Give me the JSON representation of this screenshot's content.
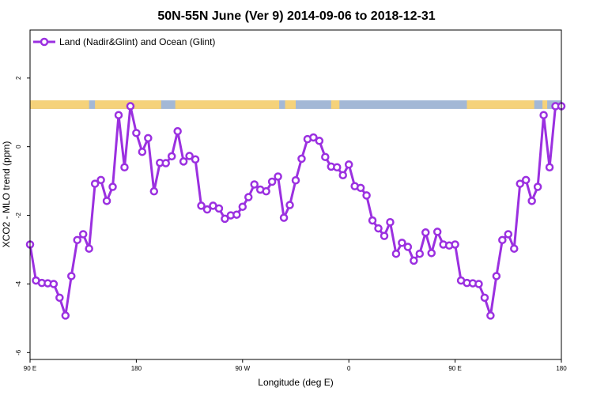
{
  "chart_data": {
    "type": "line",
    "title": "50N-55N June (Ver 9)   2014-09-06 to 2018-12-31",
    "xlabel": "Longitude (deg E)",
    "ylabel": "XCO2 - MLO trend (ppm)",
    "xlim": [
      90,
      540
    ],
    "ylim": [
      -6.2,
      3.4
    ],
    "x_ticks": [
      {
        "value": 90,
        "label": "90 E"
      },
      {
        "value": 180,
        "label": "180"
      },
      {
        "value": 270,
        "label": "90 W"
      },
      {
        "value": 360,
        "label": "0"
      },
      {
        "value": 450,
        "label": "90 E"
      },
      {
        "value": 540,
        "label": "180"
      }
    ],
    "y_ticks": [
      {
        "value": 2,
        "label": "2"
      },
      {
        "value": 0,
        "label": "0"
      },
      {
        "value": -2,
        "label": "-2"
      },
      {
        "value": -4,
        "label": "-4"
      },
      {
        "value": -6,
        "label": "-6"
      }
    ],
    "grid": false,
    "legend_position": "top-left",
    "colors": {
      "series": "#9b30e0",
      "land": "#f5d27a",
      "ocean": "#a3b8d6",
      "axis": "#000000"
    },
    "land_ocean_strip": {
      "y_top": 1.35,
      "y_bottom": 1.1,
      "land_ranges": [
        [
          90,
          140
        ],
        [
          145,
          201
        ],
        [
          213,
          301
        ],
        [
          306,
          315
        ],
        [
          345,
          352
        ],
        [
          460,
          517
        ],
        [
          524,
          528
        ]
      ]
    },
    "series": [
      {
        "name": "Land (Nadir&Glint) and Ocean (Glint)",
        "x": [
          90,
          95,
          100,
          105,
          110,
          115,
          120,
          125,
          130,
          135,
          140,
          145,
          150,
          155,
          160,
          165,
          170,
          175,
          180,
          185,
          190,
          195,
          200,
          205,
          210,
          215,
          220,
          225,
          230,
          235,
          240,
          245,
          250,
          255,
          260,
          265,
          270,
          275,
          280,
          285,
          290,
          295,
          300,
          305,
          310,
          315,
          320,
          325,
          330,
          335,
          340,
          345,
          350,
          355,
          360,
          365,
          370,
          375,
          380,
          385,
          390,
          395,
          400,
          405,
          410,
          415,
          420,
          425,
          430,
          435,
          440,
          445,
          450,
          455,
          460,
          465,
          470,
          475,
          480,
          485,
          490,
          495,
          500,
          505,
          510,
          515,
          520,
          525,
          530,
          535,
          540
        ],
        "values": [
          -2.85,
          -3.9,
          -3.97,
          -3.98,
          -4.0,
          -4.4,
          -4.92,
          -3.77,
          -2.72,
          -2.55,
          -2.97,
          -1.08,
          -0.97,
          -1.58,
          -1.17,
          0.92,
          -0.6,
          1.18,
          0.4,
          -0.15,
          0.25,
          -1.3,
          -0.47,
          -0.48,
          -0.28,
          0.45,
          -0.43,
          -0.27,
          -0.37,
          -1.72,
          -1.83,
          -1.72,
          -1.8,
          -2.1,
          -2.0,
          -1.98,
          -1.75,
          -1.47,
          -1.1,
          -1.25,
          -1.3,
          -1.02,
          -0.87,
          -2.07,
          -1.7,
          -0.98,
          -0.35,
          0.22,
          0.27,
          0.17,
          -0.3,
          -0.58,
          -0.6,
          -0.83,
          -0.52,
          -1.15,
          -1.2,
          -1.42,
          -2.15,
          -2.38,
          -2.6,
          -2.2,
          -3.12,
          -2.8,
          -2.92,
          -3.32,
          -3.12,
          -2.5,
          -3.1,
          -2.48,
          -2.85,
          -2.88,
          -2.85,
          -3.9,
          -3.97,
          -3.98,
          -4.0,
          -4.4,
          -4.92,
          -3.77,
          -2.72,
          -2.55,
          -2.97,
          -1.08,
          -0.97,
          -1.58,
          -1.17,
          0.92,
          -0.6,
          1.18,
          1.18
        ]
      }
    ]
  }
}
